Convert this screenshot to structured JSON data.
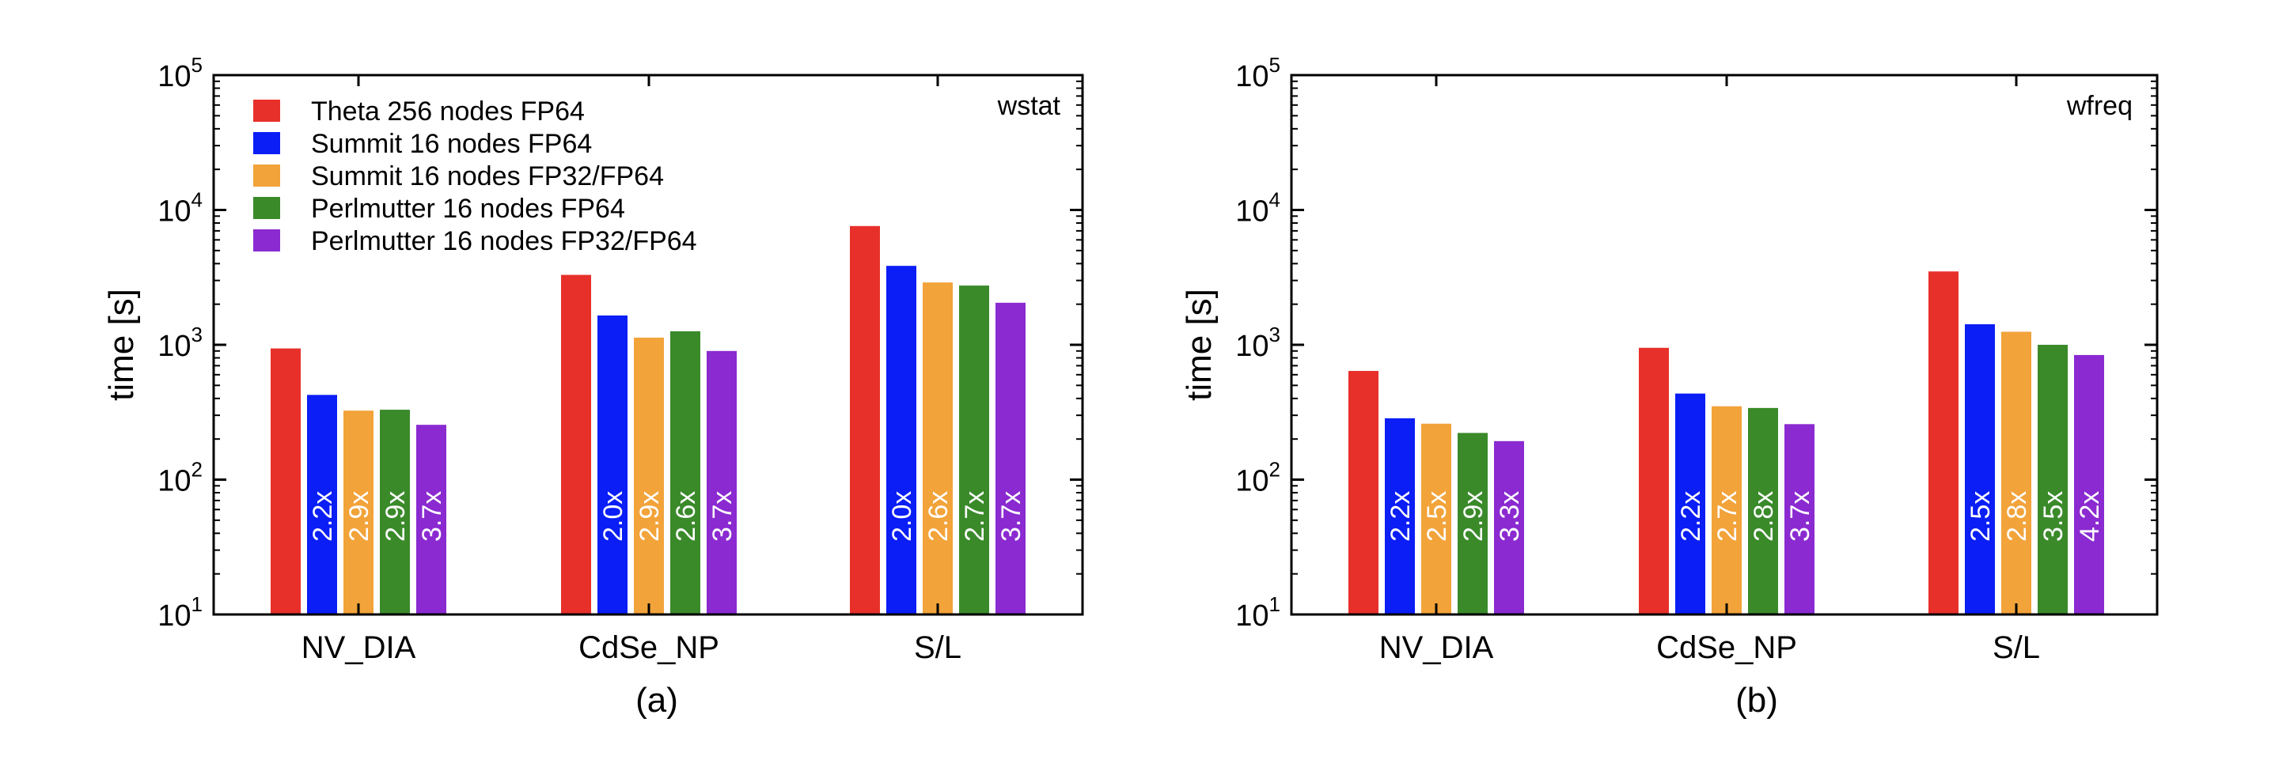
{
  "chart_data": [
    {
      "type": "bar",
      "panel_label": "(a)",
      "annotation": "wstat",
      "yscale": "log",
      "ylabel": "time [s]",
      "ylim": [
        10,
        100000
      ],
      "yticks": [
        {
          "base": "10",
          "exp": "1"
        },
        {
          "base": "10",
          "exp": "2"
        },
        {
          "base": "10",
          "exp": "3"
        },
        {
          "base": "10",
          "exp": "4"
        },
        {
          "base": "10",
          "exp": "5"
        }
      ],
      "categories": [
        "NV_DIA",
        "CdSe_NP",
        "S/L"
      ],
      "legend_position": "top-left",
      "series": [
        {
          "name": "Theta 256 nodes FP64",
          "color": "#e8302a",
          "values": [
            940,
            3300,
            7600
          ],
          "labels": [
            "",
            "",
            ""
          ]
        },
        {
          "name": "Summit 16 nodes FP64",
          "color": "#0a1ef5",
          "values": [
            425,
            1650,
            3850
          ],
          "labels": [
            "2.2x",
            "2.0x",
            "2.0x"
          ]
        },
        {
          "name": "Summit 16 nodes FP32/FP64",
          "color": "#f2a33a",
          "values": [
            325,
            1130,
            2900
          ],
          "labels": [
            "2.9x",
            "2.9x",
            "2.6x"
          ]
        },
        {
          "name": "Perlmutter 16 nodes FP64",
          "color": "#3a8a2a",
          "values": [
            330,
            1260,
            2750
          ],
          "labels": [
            "2.9x",
            "2.6x",
            "2.7x"
          ]
        },
        {
          "name": "Perlmutter 16 nodes FP32/FP64",
          "color": "#8a2ad0",
          "values": [
            255,
            900,
            2050
          ],
          "labels": [
            "3.7x",
            "3.7x",
            "3.7x"
          ]
        }
      ]
    },
    {
      "type": "bar",
      "panel_label": "(b)",
      "annotation": "wfreq",
      "yscale": "log",
      "ylabel": "time [s]",
      "ylim": [
        10,
        100000
      ],
      "yticks": [
        {
          "base": "10",
          "exp": "1"
        },
        {
          "base": "10",
          "exp": "2"
        },
        {
          "base": "10",
          "exp": "3"
        },
        {
          "base": "10",
          "exp": "4"
        },
        {
          "base": "10",
          "exp": "5"
        }
      ],
      "categories": [
        "NV_DIA",
        "CdSe_NP",
        "S/L"
      ],
      "series": [
        {
          "name": "Theta 256 nodes FP64",
          "color": "#e8302a",
          "values": [
            640,
            950,
            3500
          ],
          "labels": [
            "",
            "",
            ""
          ]
        },
        {
          "name": "Summit 16 nodes FP64",
          "color": "#0a1ef5",
          "values": [
            285,
            435,
            1420
          ],
          "labels": [
            "2.2x",
            "2.2x",
            "2.5x"
          ]
        },
        {
          "name": "Summit 16 nodes FP32/FP64",
          "color": "#f2a33a",
          "values": [
            260,
            350,
            1250
          ],
          "labels": [
            "2.5x",
            "2.7x",
            "2.8x"
          ]
        },
        {
          "name": "Perlmutter 16 nodes FP64",
          "color": "#3a8a2a",
          "values": [
            222,
            340,
            1000
          ],
          "labels": [
            "2.9x",
            "2.8x",
            "3.5x"
          ]
        },
        {
          "name": "Perlmutter 16 nodes FP32/FP64",
          "color": "#8a2ad0",
          "values": [
            193,
            258,
            840
          ],
          "labels": [
            "3.3x",
            "3.7x",
            "4.2x"
          ]
        }
      ]
    }
  ]
}
